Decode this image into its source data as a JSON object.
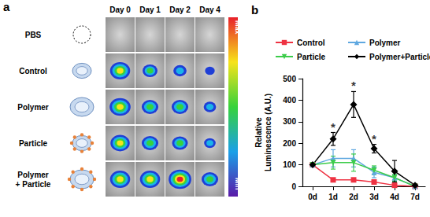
{
  "figure": {
    "panels": [
      "a",
      "b"
    ]
  },
  "panel_a": {
    "columns": [
      "Day 0",
      "Day 1",
      "Day 2",
      "Day 4"
    ],
    "rows": [
      "PBS",
      "Control",
      "Polymer",
      "Particle",
      "Polymer\n+ Particle"
    ],
    "colorbar": {
      "max_label": "Max",
      "min_label": "Min"
    }
  },
  "chart_data": {
    "type": "line",
    "categories": [
      "0d",
      "1d",
      "2d",
      "3d",
      "4d",
      "7d"
    ],
    "y_label": "Relative\nLuminescence (A.U.)",
    "ylim": [
      0,
      500
    ],
    "yticks": [
      0,
      100,
      200,
      300,
      400,
      500
    ],
    "grid": false,
    "series": [
      {
        "name": "Control",
        "color": "#ee3242",
        "marker": "square",
        "values": [
          100,
          30,
          30,
          20,
          5,
          0
        ],
        "errors": [
          0,
          5,
          5,
          5,
          3,
          0
        ]
      },
      {
        "name": "Polymer",
        "color": "#5fa8e0",
        "marker": "triangle",
        "values": [
          100,
          130,
          130,
          65,
          40,
          0
        ],
        "errors": [
          0,
          40,
          40,
          25,
          15,
          0
        ]
      },
      {
        "name": "Particle",
        "color": "#3ccc4a",
        "marker": "triangle-down",
        "values": [
          100,
          110,
          110,
          75,
          40,
          0
        ],
        "errors": [
          0,
          30,
          40,
          20,
          15,
          0
        ]
      },
      {
        "name": "Polymer+Particle",
        "color": "#000000",
        "marker": "diamond",
        "values": [
          100,
          220,
          380,
          175,
          70,
          5
        ],
        "errors": [
          0,
          30,
          60,
          20,
          50,
          5
        ]
      }
    ],
    "annotations": [
      {
        "text": "*",
        "x": "1d",
        "series": "Polymer+Particle"
      },
      {
        "text": "*",
        "x": "2d",
        "series": "Polymer+Particle"
      },
      {
        "text": "*",
        "x": "3d",
        "series": "Polymer+Particle"
      }
    ]
  }
}
